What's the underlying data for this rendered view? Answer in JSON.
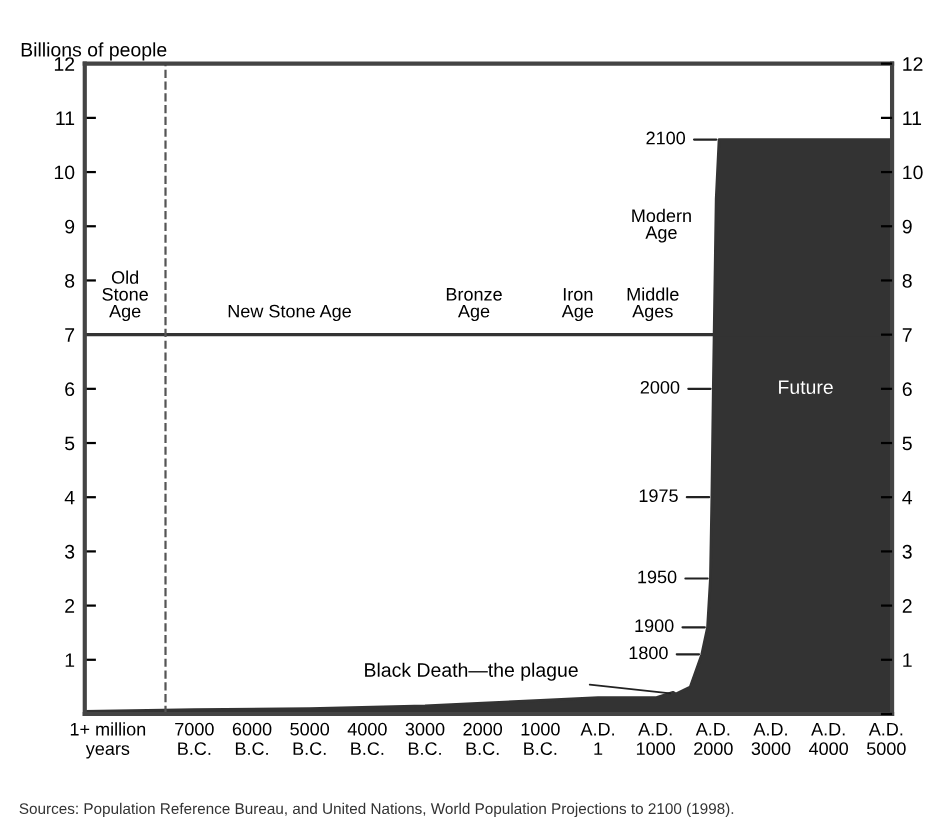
{
  "chart_data": {
    "type": "area",
    "ylabel": "Billions of people",
    "x": [
      -8900,
      -7000,
      -5000,
      -3000,
      -2000,
      -1000,
      1,
      1000,
      1300,
      1350,
      1600,
      1800,
      1900,
      1950,
      1975,
      2000,
      2050,
      2100,
      5100
    ],
    "series": [
      {
        "color": "#333333",
        "values": [
          0.05,
          0.08,
          0.1,
          0.15,
          0.2,
          0.25,
          0.3,
          0.3,
          0.4,
          0.37,
          0.5,
          1.1,
          1.6,
          2.5,
          4.0,
          6.0,
          9.5,
          10.6,
          10.6
        ]
      }
    ],
    "xlim": [
      -8900,
      5100
    ],
    "xticks": [
      {
        "value": -8500,
        "label": "1+ million\nyears"
      },
      {
        "value": -7000,
        "label": "7000\nB.C."
      },
      {
        "value": -6000,
        "label": "6000\nB.C."
      },
      {
        "value": -5000,
        "label": "5000\nB.C."
      },
      {
        "value": -4000,
        "label": "4000\nB.C."
      },
      {
        "value": -3000,
        "label": "3000\nB.C."
      },
      {
        "value": -2000,
        "label": "2000\nB.C."
      },
      {
        "value": -1000,
        "label": "1000\nB.C."
      },
      {
        "value": 1,
        "label": "A.D.\n1"
      },
      {
        "value": 1000,
        "label": "A.D.\n1000"
      },
      {
        "value": 2000,
        "label": "A.D.\n2000"
      },
      {
        "value": 3000,
        "label": "A.D.\n3000"
      },
      {
        "value": 4000,
        "label": "A.D.\n4000"
      },
      {
        "value": 5000,
        "label": "A.D.\n5000"
      }
    ],
    "ylim": [
      0,
      12
    ],
    "yticks": [
      {
        "value": 0,
        "label": null
      },
      1,
      2,
      3,
      4,
      5,
      6,
      7,
      8,
      9,
      10,
      11,
      12
    ],
    "y2lim": [
      0,
      12
    ],
    "y2ticks": [
      {
        "value": 0,
        "label": null
      },
      1,
      2,
      3,
      4,
      5,
      6,
      7,
      8,
      9,
      10,
      11,
      12
    ],
    "ref_lines": [
      {
        "axis": "y",
        "value": 7,
        "color": "#333333",
        "line_style": "solid"
      },
      {
        "axis": "x",
        "value": -7500,
        "color": "#555555",
        "line_style": "dashed"
      }
    ],
    "annotations": [
      {
        "text": "2100",
        "x": 2100,
        "y": 10.6
      },
      {
        "text": "2000",
        "x": 2000,
        "y": 6.0
      },
      {
        "text": "1975",
        "x": 1975,
        "y": 4.0
      },
      {
        "text": "1950",
        "x": 1950,
        "y": 2.5
      },
      {
        "text": "1900",
        "x": 1900,
        "y": 1.6
      },
      {
        "text": "1800",
        "x": 1800,
        "y": 1.1
      },
      {
        "text": "Black Death—the plague",
        "x": 1350,
        "y": 0.37
      },
      "Old\nStone\nAge",
      "New Stone Age",
      "Bronze\nAge",
      "Iron\nAge",
      "Middle\nAges",
      "Modern\nAge",
      "Future",
      "Sources: Population Reference Bureau, and United Nations, World Population Projections to 2100 (1998)."
    ],
    "grid": false
  }
}
